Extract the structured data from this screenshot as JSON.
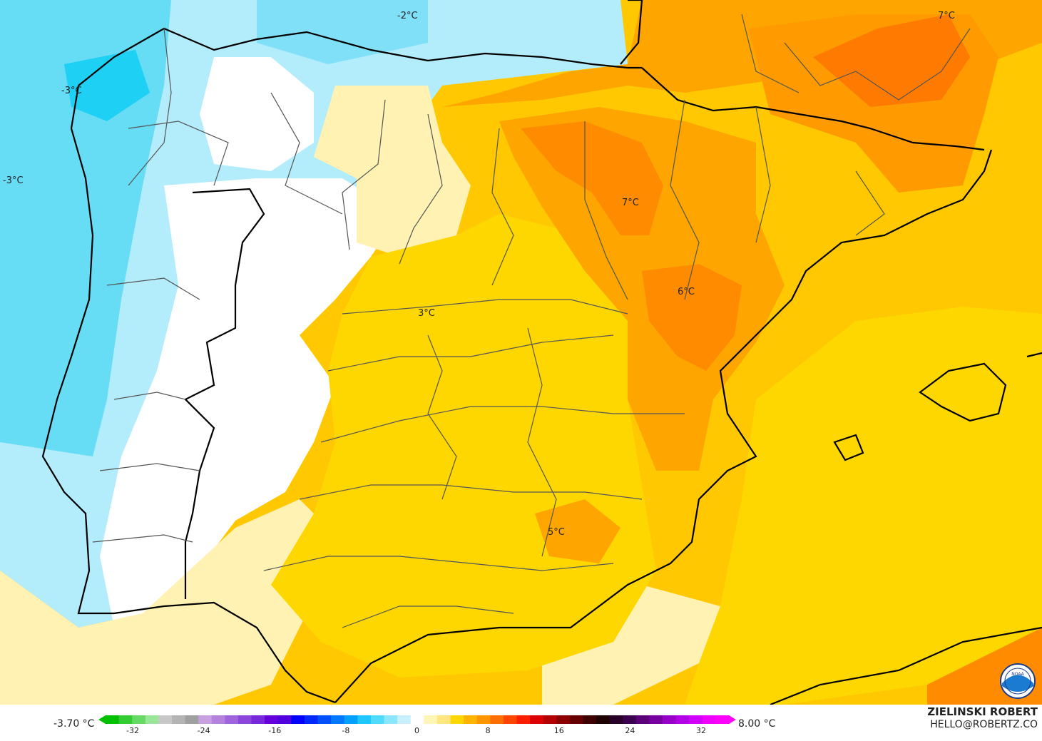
{
  "map": {
    "contour_labels": [
      {
        "id": "label-north-sea",
        "text": "-2°C"
      },
      {
        "id": "label-galicia",
        "text": "-3°C"
      },
      {
        "id": "label-atlantic",
        "text": "-3°C"
      },
      {
        "id": "label-ebro",
        "text": "7°C"
      },
      {
        "id": "label-france",
        "text": "7°C"
      },
      {
        "id": "label-teruel",
        "text": "6°C"
      },
      {
        "id": "label-madrid",
        "text": "3°C"
      },
      {
        "id": "label-murcia",
        "text": "5°C"
      }
    ],
    "colors": {
      "sea_warm": "#ffd700",
      "deep_orange": "#ff8c00",
      "orange": "#ffa500",
      "light_orange": "#ffc200",
      "pale_yellow": "#fff2b3",
      "white": "#ffffff",
      "light_blue": "#b3ecfb",
      "cyan": "#4dd9f5",
      "bright_cyan": "#1fd0f5",
      "borders": "#000000",
      "provinces": "#555555"
    }
  },
  "legend": {
    "min_label": "-3.70 °C",
    "max_label": "8.00 °C",
    "ticks": [
      "-32",
      "-24",
      "-16",
      "-8",
      "0",
      "8",
      "16",
      "24",
      "32"
    ],
    "colors": [
      "#00c000",
      "#33cc33",
      "#66d966",
      "#99e699",
      "#c8c8c8",
      "#b4b4b4",
      "#a0a0a0",
      "#c8a0e0",
      "#b482dc",
      "#a064dc",
      "#8c46dc",
      "#7828dc",
      "#6400dc",
      "#5000dc",
      "#0000ff",
      "#0028ff",
      "#0050ff",
      "#0078ff",
      "#00a0ff",
      "#1ec8ff",
      "#50dcff",
      "#8ce6ff",
      "#c8f0ff",
      "#ffffff",
      "#fff5b4",
      "#ffe680",
      "#ffd700",
      "#ffb400",
      "#ff9600",
      "#ff6e00",
      "#ff4600",
      "#ff1e00",
      "#dc0000",
      "#b40000",
      "#8c0000",
      "#640000",
      "#3c0000",
      "#1e0000",
      "#280028",
      "#3c0050",
      "#5a0078",
      "#7800a0",
      "#9600c8",
      "#b400e6",
      "#d200ff",
      "#f000ff",
      "#ff00ff"
    ]
  },
  "credit": {
    "name": "ZIELINSKI ROBERT",
    "email": "HELLO@ROBERTZ.CO",
    "logo": "NOAA"
  }
}
